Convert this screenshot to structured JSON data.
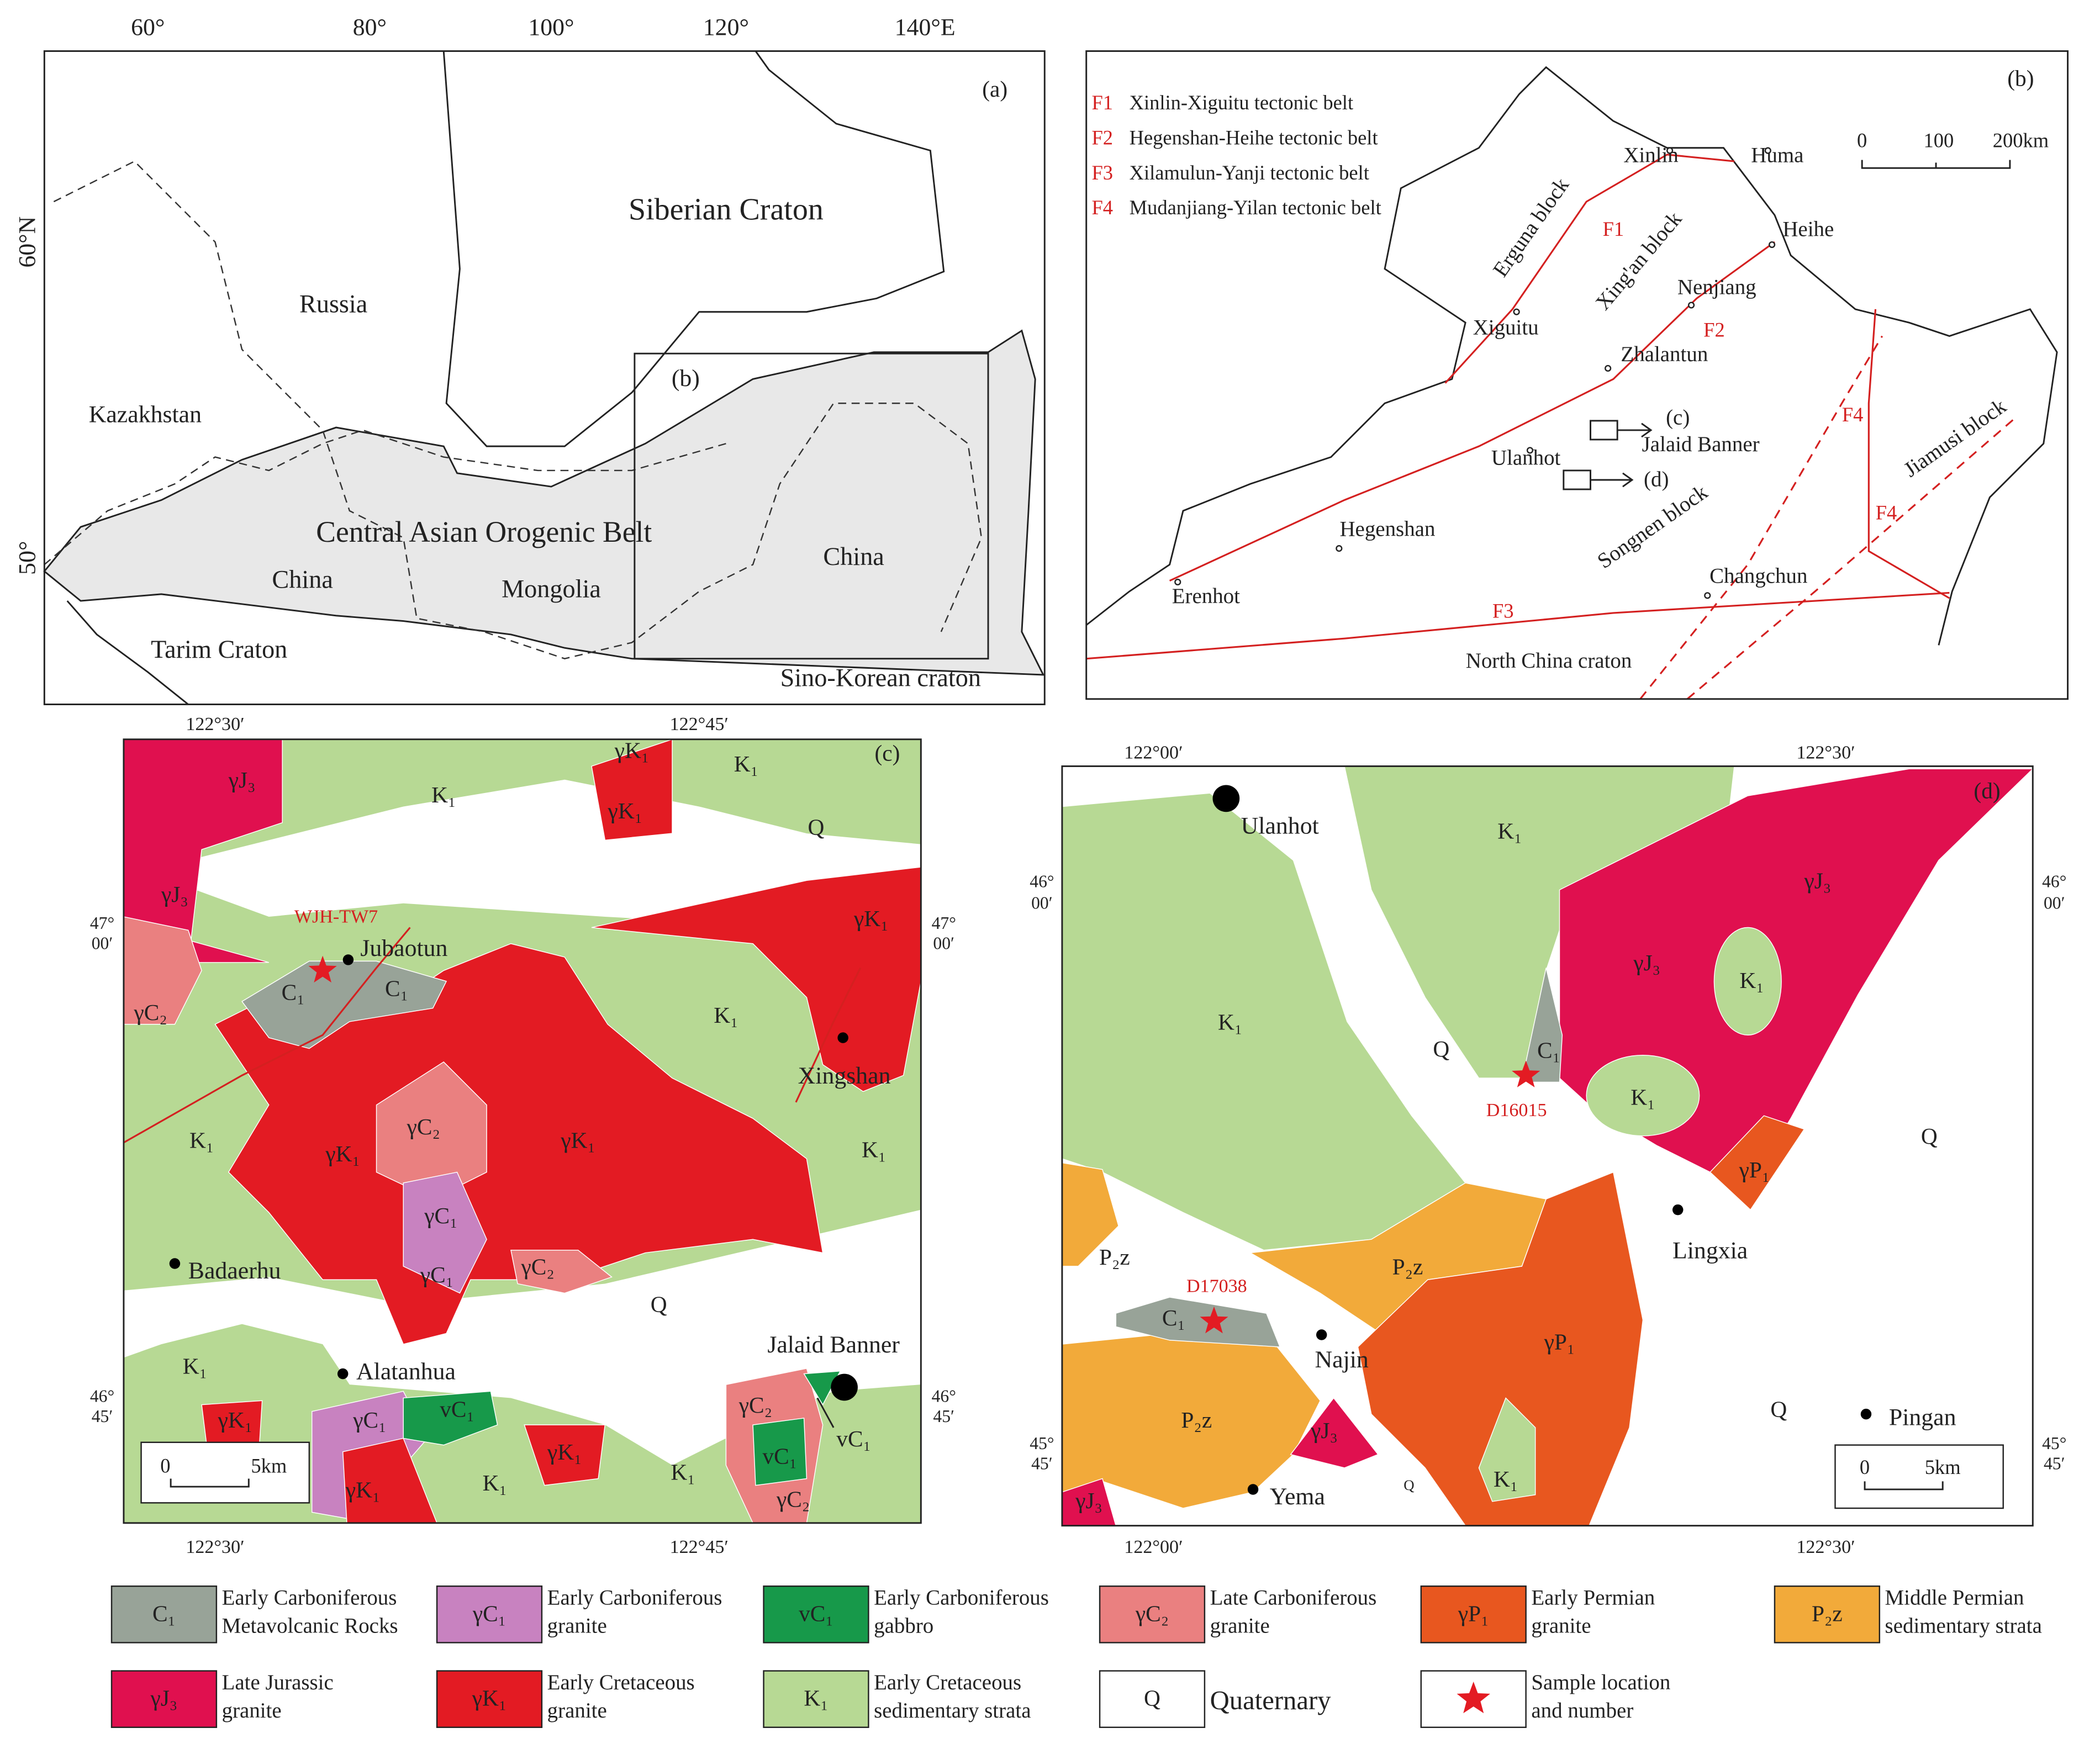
{
  "panel_a": {
    "label": "(a)",
    "longitudes": [
      "60°",
      "80°",
      "100°",
      "120°",
      "140°E"
    ],
    "latitudes": [
      "60°N",
      "50°"
    ],
    "names": [
      "Siberian Craton",
      "Russia",
      "Kazakhstan",
      "Central Asian Orogenic Belt",
      "China",
      "Mongolia",
      "China",
      "Tarim Craton",
      "Sino-Korean craton",
      "(b)"
    ]
  },
  "panel_b": {
    "label": "(b)",
    "faults": [
      {
        "code": "F1",
        "name": "Xinlin-Xiguitu tectonic belt"
      },
      {
        "code": "F2",
        "name": "Hegenshan-Heihe tectonic belt"
      },
      {
        "code": "F3",
        "name": "Xilamulun-Yanji tectonic belt"
      },
      {
        "code": "F4",
        "name": "Mudanjiang-Yilan tectonic belt"
      }
    ],
    "scale": [
      "0",
      "100",
      "200km"
    ],
    "names": [
      "Xinlin",
      "Huma",
      "Heihe",
      "Erguna block",
      "Xing'an block",
      "Nenjiang",
      "Xiguitu",
      "Zhalantun",
      "Jalaid Banner",
      "Ulanhot",
      "Songnen block",
      "Hegenshan",
      "Changchun",
      "Erenhot",
      "North China craton",
      "Jiamusi block",
      "(c)",
      "(d)"
    ]
  },
  "panel_c": {
    "label": "(c)",
    "longitudes": [
      "122°30′",
      "122°45′"
    ],
    "latitudes": [
      [
        "47°",
        "00′"
      ],
      [
        "46°",
        "45′"
      ]
    ],
    "places": [
      "Jubaotun",
      "Xingshan",
      "Badaerhu",
      "Alatanhua",
      "Jalaid Banner"
    ],
    "sample": "WJH-TW7",
    "scale": [
      "0",
      "5km"
    ],
    "units": [
      "Q",
      "Q",
      "K₁",
      "K₁",
      "K₁",
      "K₁",
      "K₁",
      "K₁",
      "K₁",
      "K₁",
      "γJ₃",
      "γJ₃",
      "γK₁",
      "γK₁",
      "γK₁",
      "γK₁",
      "γK₁",
      "γK₁",
      "γK₁",
      "γK₁",
      "C₁",
      "C₁",
      "γC₂",
      "γC₂",
      "γC₂",
      "γC₂",
      "γC₂",
      "γC₁",
      "γC₁",
      "γC₁",
      "vC₁",
      "vC₁",
      "vC₁"
    ]
  },
  "panel_d": {
    "label": "(d)",
    "longitudes": [
      "122°00′",
      "122°30′"
    ],
    "latitudes": [
      [
        "46°",
        "00′"
      ],
      [
        "45°",
        "45′"
      ]
    ],
    "places": [
      "Ulanhot",
      "Lingxia",
      "Najin",
      "Yema",
      "Pingan"
    ],
    "samples": [
      "D16015",
      "D17038"
    ],
    "scale": [
      "0",
      "5km"
    ],
    "units": [
      "K₁",
      "K₁",
      "K₁",
      "K₁",
      "K₁",
      "Q",
      "Q",
      "Q",
      "Q",
      "γJ₃",
      "γJ₃",
      "γJ₃",
      "γJ₃",
      "C₁",
      "C₁",
      "γP₁",
      "γP₁",
      "P₂z",
      "P₂z",
      "P₂z"
    ]
  },
  "legend": {
    "items": [
      {
        "symbol": "C₁",
        "lines": [
          "Early Carboniferous",
          "Metavolcanic Rocks"
        ],
        "color": "#98a398"
      },
      {
        "symbol": "γC₁",
        "lines": [
          "Early Carboniferous",
          "granite"
        ],
        "color": "#c882c0"
      },
      {
        "symbol": "vC₁",
        "lines": [
          "Early Carboniferous",
          "gabbro"
        ],
        "color": "#17994a"
      },
      {
        "symbol": "γC₂",
        "lines": [
          "Late  Carboniferous",
          "granite"
        ],
        "color": "#ea8080"
      },
      {
        "symbol": "γP₁",
        "lines": [
          "Early Permian",
          "granite"
        ],
        "color": "#e8571f"
      },
      {
        "symbol": "P₂z",
        "lines": [
          "Middle Permian",
          "sedimentary strata"
        ],
        "color": "#f2aa3a"
      },
      {
        "symbol": "γJ₃",
        "lines": [
          "Late Jurassic",
          "granite"
        ],
        "color": "#e0104f"
      },
      {
        "symbol": "γK₁",
        "lines": [
          "Early Cretaceous",
          "granite"
        ],
        "color": "#e31b23"
      },
      {
        "symbol": "K₁",
        "lines": [
          "Early Cretaceous",
          "sedimentary strata"
        ],
        "color": "#b7d994"
      },
      {
        "symbol": "Q",
        "lines": [
          "Quaternary"
        ],
        "color": "#ffffff"
      },
      {
        "lines": [
          "Sample location",
          "and number"
        ],
        "color": "#e31b23"
      }
    ]
  }
}
